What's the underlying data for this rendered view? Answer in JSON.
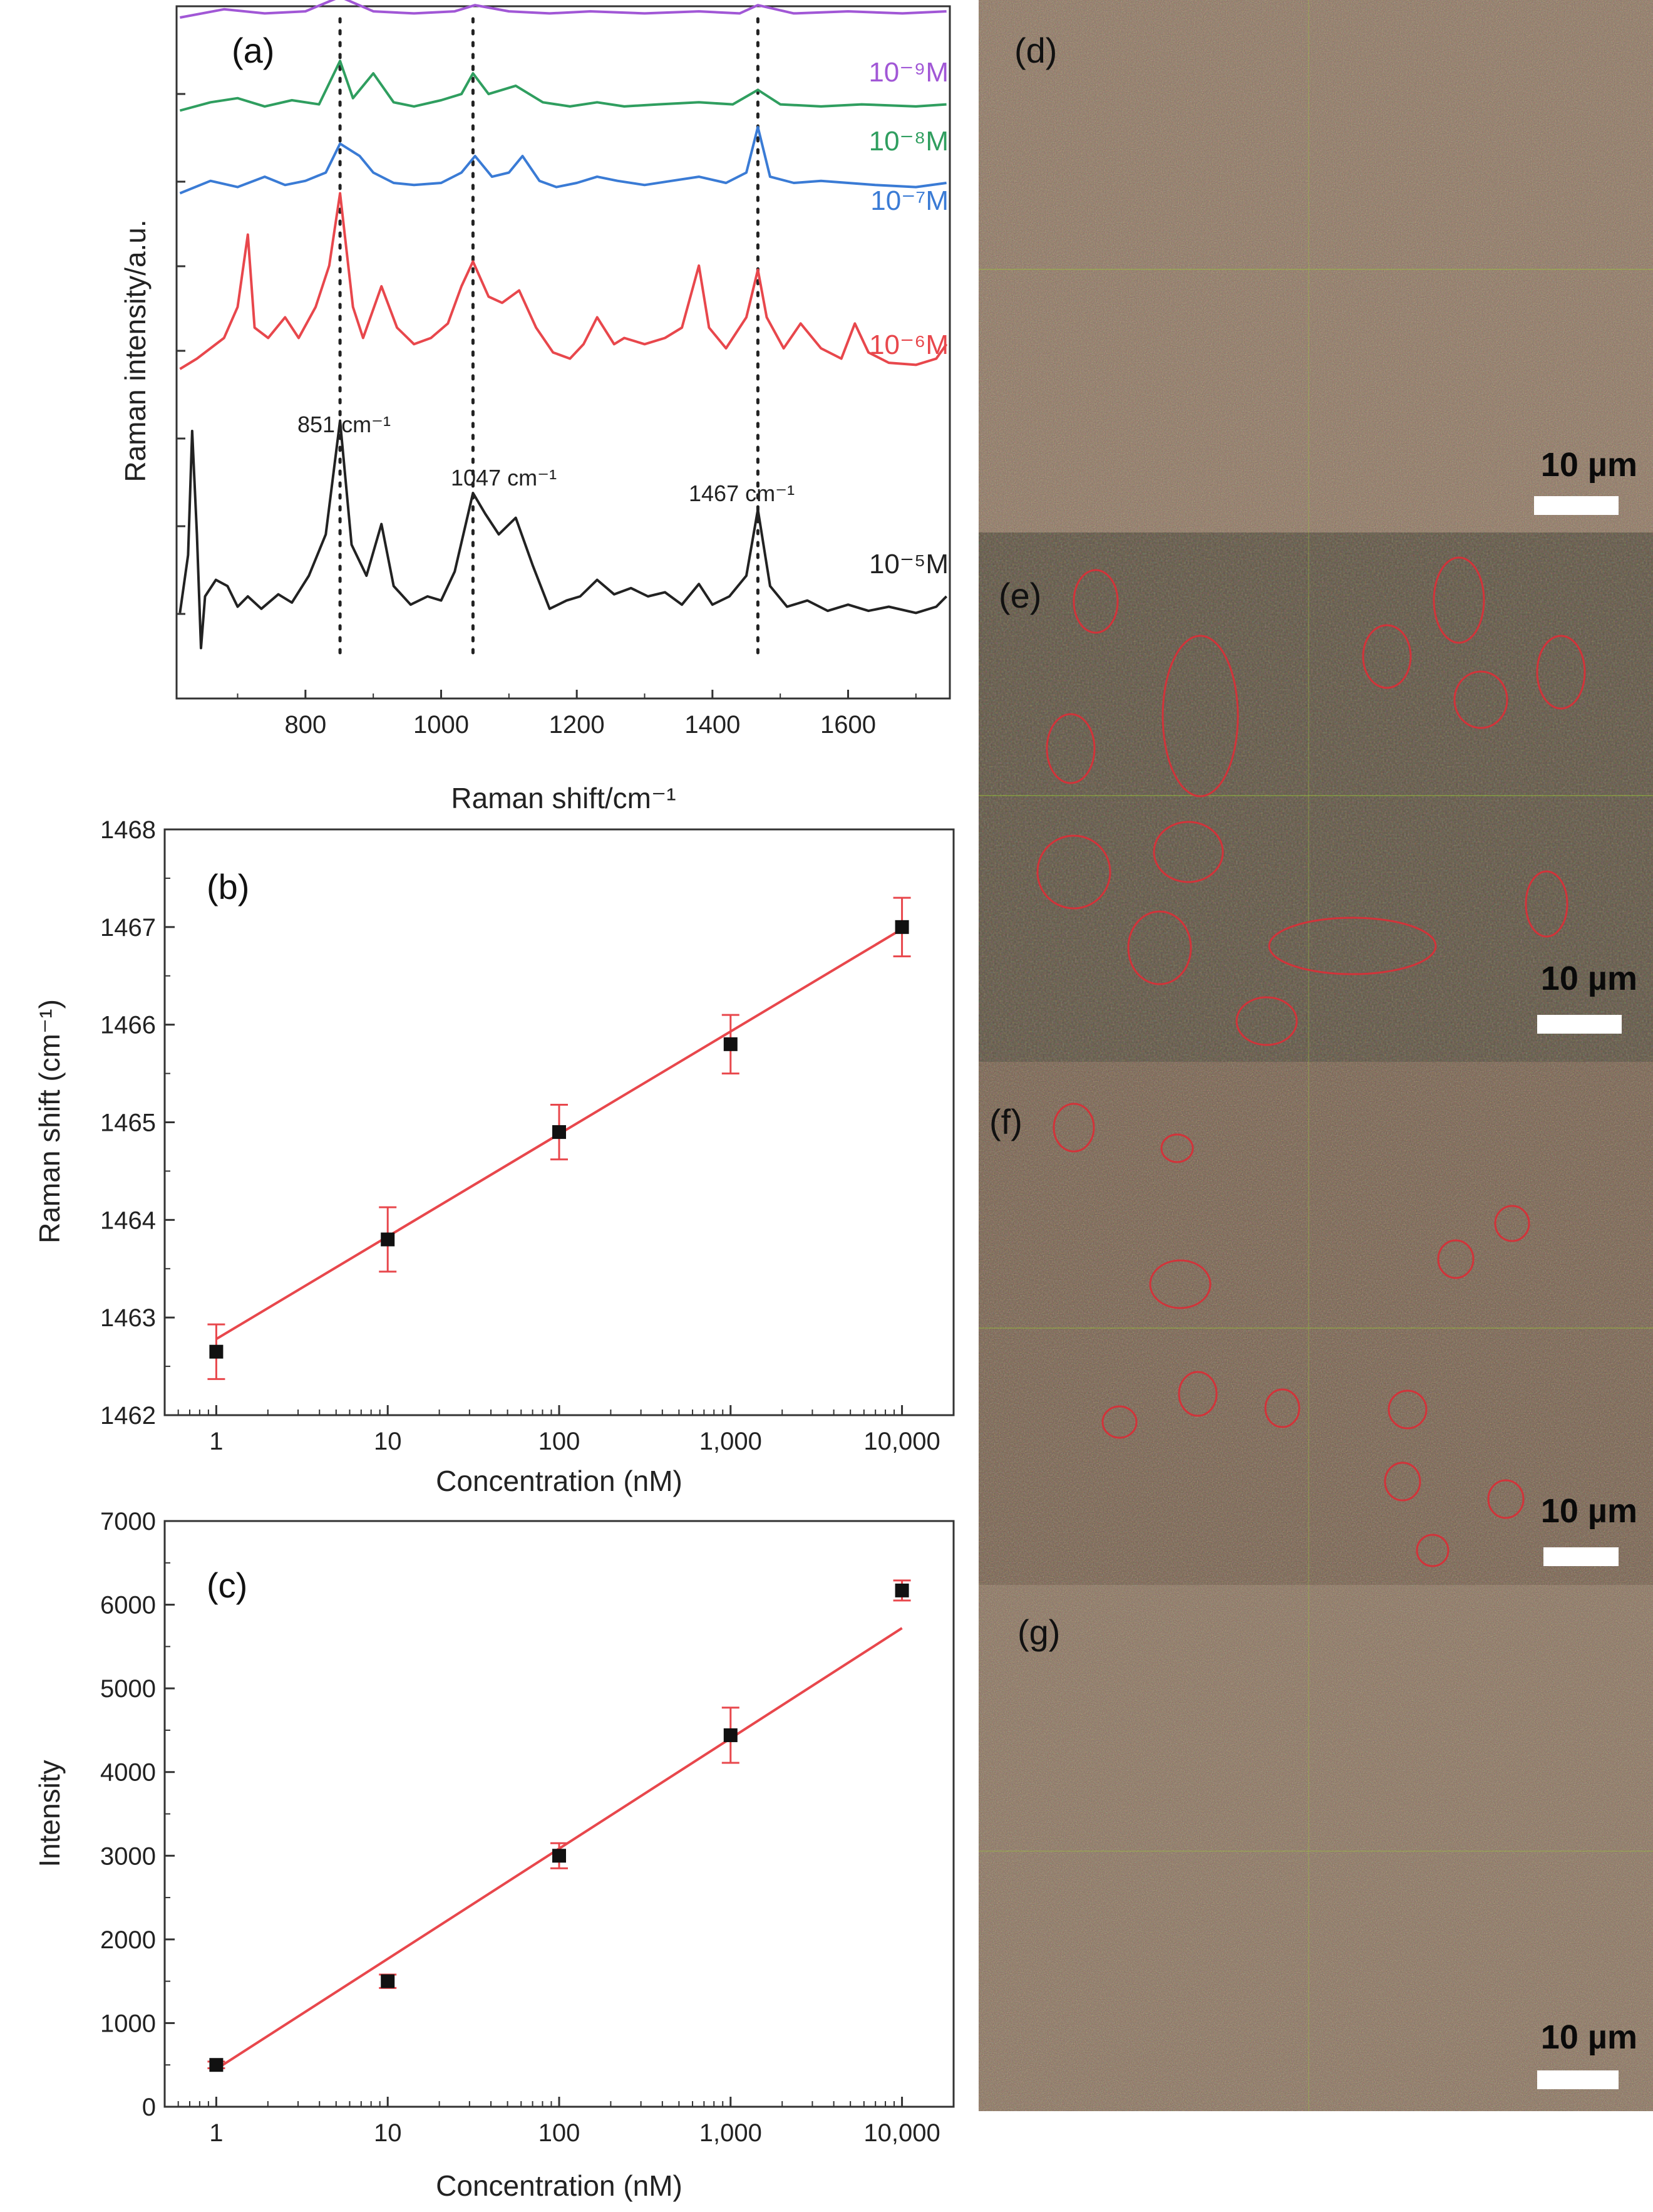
{
  "colors": {
    "black": "#222222",
    "red": "#e8474c",
    "blue": "#3a7bd5",
    "green": "#2f9e5f",
    "purple": "#a157d6",
    "fit": "#e8474c"
  },
  "chart_data": [
    {
      "id": "a",
      "type": "line",
      "panel_label": "(a)",
      "xlabel": "Raman shift/cm⁻¹",
      "ylabel": "Raman intensity/a.u.",
      "xlim": [
        610,
        1750
      ],
      "xticks": [
        "800",
        "1000",
        "1200",
        "1400",
        "1600"
      ],
      "reference_lines_cm": [
        851,
        1047,
        1467
      ],
      "peak_annotations": [
        {
          "text": "851 cm⁻¹",
          "x": 851
        },
        {
          "text": "1047 cm⁻¹",
          "x": 1047
        },
        {
          "text": "1467 cm⁻¹",
          "x": 1467
        }
      ],
      "series": [
        {
          "name": "10⁻⁵M",
          "color_key": "black",
          "baseline": 0.0,
          "values": [
            [
              615,
              0.02
            ],
            [
              627,
              0.3
            ],
            [
              633,
              0.9
            ],
            [
              640,
              0.4
            ],
            [
              646,
              -0.15
            ],
            [
              652,
              0.1
            ],
            [
              668,
              0.18
            ],
            [
              685,
              0.15
            ],
            [
              700,
              0.05
            ],
            [
              715,
              0.1
            ],
            [
              735,
              0.04
            ],
            [
              760,
              0.11
            ],
            [
              780,
              0.07
            ],
            [
              805,
              0.2
            ],
            [
              830,
              0.4
            ],
            [
              851,
              0.95
            ],
            [
              868,
              0.35
            ],
            [
              890,
              0.2
            ],
            [
              912,
              0.45
            ],
            [
              930,
              0.15
            ],
            [
              955,
              0.06
            ],
            [
              980,
              0.1
            ],
            [
              1000,
              0.08
            ],
            [
              1020,
              0.22
            ],
            [
              1047,
              0.6
            ],
            [
              1065,
              0.5
            ],
            [
              1085,
              0.4
            ],
            [
              1110,
              0.48
            ],
            [
              1135,
              0.25
            ],
            [
              1160,
              0.04
            ],
            [
              1185,
              0.08
            ],
            [
              1205,
              0.1
            ],
            [
              1230,
              0.18
            ],
            [
              1255,
              0.11
            ],
            [
              1280,
              0.14
            ],
            [
              1305,
              0.1
            ],
            [
              1330,
              0.12
            ],
            [
              1355,
              0.06
            ],
            [
              1380,
              0.16
            ],
            [
              1400,
              0.06
            ],
            [
              1425,
              0.1
            ],
            [
              1450,
              0.2
            ],
            [
              1467,
              0.52
            ],
            [
              1485,
              0.15
            ],
            [
              1510,
              0.05
            ],
            [
              1540,
              0.08
            ],
            [
              1570,
              0.03
            ],
            [
              1600,
              0.06
            ],
            [
              1630,
              0.03
            ],
            [
              1660,
              0.05
            ],
            [
              1700,
              0.02
            ],
            [
              1730,
              0.05
            ],
            [
              1745,
              0.1
            ]
          ]
        },
        {
          "name": "10⁻⁶M",
          "color_key": "red",
          "baseline": 1.2,
          "values": [
            [
              615,
              0.0
            ],
            [
              640,
              0.05
            ],
            [
              680,
              0.15
            ],
            [
              700,
              0.3
            ],
            [
              715,
              0.65
            ],
            [
              725,
              0.2
            ],
            [
              745,
              0.15
            ],
            [
              770,
              0.25
            ],
            [
              790,
              0.15
            ],
            [
              815,
              0.3
            ],
            [
              835,
              0.5
            ],
            [
              851,
              0.85
            ],
            [
              870,
              0.3
            ],
            [
              885,
              0.15
            ],
            [
              912,
              0.4
            ],
            [
              935,
              0.2
            ],
            [
              960,
              0.12
            ],
            [
              985,
              0.15
            ],
            [
              1010,
              0.22
            ],
            [
              1030,
              0.4
            ],
            [
              1047,
              0.52
            ],
            [
              1070,
              0.35
            ],
            [
              1090,
              0.32
            ],
            [
              1115,
              0.38
            ],
            [
              1140,
              0.2
            ],
            [
              1165,
              0.08
            ],
            [
              1190,
              0.05
            ],
            [
              1210,
              0.12
            ],
            [
              1230,
              0.25
            ],
            [
              1255,
              0.12
            ],
            [
              1270,
              0.15
            ],
            [
              1300,
              0.12
            ],
            [
              1330,
              0.15
            ],
            [
              1355,
              0.2
            ],
            [
              1380,
              0.5
            ],
            [
              1395,
              0.2
            ],
            [
              1420,
              0.1
            ],
            [
              1450,
              0.25
            ],
            [
              1467,
              0.48
            ],
            [
              1480,
              0.25
            ],
            [
              1505,
              0.1
            ],
            [
              1530,
              0.22
            ],
            [
              1560,
              0.1
            ],
            [
              1590,
              0.05
            ],
            [
              1610,
              0.22
            ],
            [
              1630,
              0.08
            ],
            [
              1660,
              0.03
            ],
            [
              1700,
              0.02
            ],
            [
              1730,
              0.05
            ],
            [
              1745,
              0.12
            ]
          ]
        },
        {
          "name": "10⁻⁷M",
          "color_key": "blue",
          "baseline": 2.05,
          "values": [
            [
              615,
              0.0
            ],
            [
              660,
              0.06
            ],
            [
              700,
              0.03
            ],
            [
              740,
              0.08
            ],
            [
              770,
              0.04
            ],
            [
              800,
              0.06
            ],
            [
              830,
              0.1
            ],
            [
              851,
              0.24
            ],
            [
              880,
              0.18
            ],
            [
              900,
              0.1
            ],
            [
              930,
              0.05
            ],
            [
              960,
              0.04
            ],
            [
              1000,
              0.05
            ],
            [
              1030,
              0.1
            ],
            [
              1050,
              0.18
            ],
            [
              1075,
              0.08
            ],
            [
              1100,
              0.1
            ],
            [
              1120,
              0.18
            ],
            [
              1145,
              0.06
            ],
            [
              1170,
              0.03
            ],
            [
              1200,
              0.05
            ],
            [
              1230,
              0.08
            ],
            [
              1260,
              0.06
            ],
            [
              1300,
              0.04
            ],
            [
              1340,
              0.06
            ],
            [
              1380,
              0.08
            ],
            [
              1420,
              0.05
            ],
            [
              1450,
              0.1
            ],
            [
              1467,
              0.32
            ],
            [
              1485,
              0.08
            ],
            [
              1520,
              0.05
            ],
            [
              1560,
              0.06
            ],
            [
              1600,
              0.05
            ],
            [
              1640,
              0.04
            ],
            [
              1700,
              0.03
            ],
            [
              1745,
              0.05
            ]
          ]
        },
        {
          "name": "10⁻⁸M",
          "color_key": "green",
          "baseline": 2.45,
          "values": [
            [
              615,
              0.0
            ],
            [
              660,
              0.04
            ],
            [
              700,
              0.06
            ],
            [
              740,
              0.02
            ],
            [
              780,
              0.05
            ],
            [
              820,
              0.03
            ],
            [
              851,
              0.24
            ],
            [
              870,
              0.06
            ],
            [
              900,
              0.18
            ],
            [
              930,
              0.04
            ],
            [
              960,
              0.02
            ],
            [
              1000,
              0.05
            ],
            [
              1030,
              0.08
            ],
            [
              1047,
              0.18
            ],
            [
              1070,
              0.08
            ],
            [
              1110,
              0.12
            ],
            [
              1150,
              0.04
            ],
            [
              1190,
              0.02
            ],
            [
              1230,
              0.04
            ],
            [
              1270,
              0.02
            ],
            [
              1320,
              0.03
            ],
            [
              1380,
              0.04
            ],
            [
              1430,
              0.03
            ],
            [
              1467,
              0.1
            ],
            [
              1500,
              0.03
            ],
            [
              1560,
              0.02
            ],
            [
              1620,
              0.03
            ],
            [
              1700,
              0.02
            ],
            [
              1745,
              0.03
            ]
          ]
        },
        {
          "name": "10⁻⁹M",
          "color_key": "purple",
          "baseline": 2.9,
          "values": [
            [
              615,
              0.0
            ],
            [
              680,
              0.04
            ],
            [
              740,
              0.02
            ],
            [
              800,
              0.03
            ],
            [
              851,
              0.1
            ],
            [
              900,
              0.03
            ],
            [
              960,
              0.02
            ],
            [
              1020,
              0.03
            ],
            [
              1050,
              0.06
            ],
            [
              1100,
              0.03
            ],
            [
              1160,
              0.02
            ],
            [
              1220,
              0.03
            ],
            [
              1300,
              0.02
            ],
            [
              1380,
              0.03
            ],
            [
              1440,
              0.02
            ],
            [
              1467,
              0.06
            ],
            [
              1520,
              0.02
            ],
            [
              1600,
              0.03
            ],
            [
              1680,
              0.02
            ],
            [
              1745,
              0.03
            ]
          ]
        }
      ]
    },
    {
      "id": "b",
      "type": "scatter",
      "panel_label": "(b)",
      "xlabel": "Concentration (nM)",
      "ylabel": "Raman shift (cm⁻¹)",
      "xscale": "log",
      "xlim": [
        0.5,
        20000
      ],
      "ylim": [
        1462,
        1468
      ],
      "xticks": [
        {
          "value": 1,
          "label": "1"
        },
        {
          "value": 10,
          "label": "10"
        },
        {
          "value": 100,
          "label": "100"
        },
        {
          "value": 1000,
          "label": "1,000"
        },
        {
          "value": 10000,
          "label": "10,000"
        }
      ],
      "yticks": [
        1462,
        1463,
        1464,
        1465,
        1466,
        1467,
        1468
      ],
      "x": [
        1,
        10,
        100,
        1000,
        10000
      ],
      "y": [
        1462.65,
        1463.8,
        1464.9,
        1465.8,
        1467.0
      ],
      "yerr": [
        0.28,
        0.33,
        0.28,
        0.3,
        0.3
      ],
      "fit": {
        "x": [
          1,
          10000
        ],
        "y": [
          1462.78,
          1466.98
        ]
      }
    },
    {
      "id": "c",
      "type": "scatter",
      "panel_label": "(c)",
      "xlabel": "Concentration (nM)",
      "ylabel": "Intensity",
      "xscale": "log",
      "xlim": [
        0.5,
        20000
      ],
      "ylim": [
        0,
        7000
      ],
      "xticks": [
        {
          "value": 1,
          "label": "1"
        },
        {
          "value": 10,
          "label": "10"
        },
        {
          "value": 100,
          "label": "100"
        },
        {
          "value": 1000,
          "label": "1,000"
        },
        {
          "value": 10000,
          "label": "10,000"
        }
      ],
      "yticks": [
        0,
        1000,
        2000,
        3000,
        4000,
        5000,
        6000,
        7000
      ],
      "x": [
        1,
        10,
        100,
        1000,
        10000
      ],
      "y": [
        500,
        1500,
        3000,
        4440,
        6170
      ],
      "yerr": [
        40,
        80,
        150,
        330,
        120
      ],
      "fit": {
        "x": [
          1,
          10000
        ],
        "y": [
          450,
          5720
        ]
      }
    }
  ],
  "micrographs": [
    {
      "label": "(d)",
      "scale_text": "10 µm",
      "tone": "#8a7463"
    },
    {
      "label": "(e)",
      "scale_text": "10 µm",
      "tone": "#5e5547"
    },
    {
      "label": "(f)",
      "scale_text": "10 µm",
      "tone": "#735f50"
    },
    {
      "label": "(g)",
      "scale_text": "10 µm",
      "tone": "#86705f"
    }
  ]
}
